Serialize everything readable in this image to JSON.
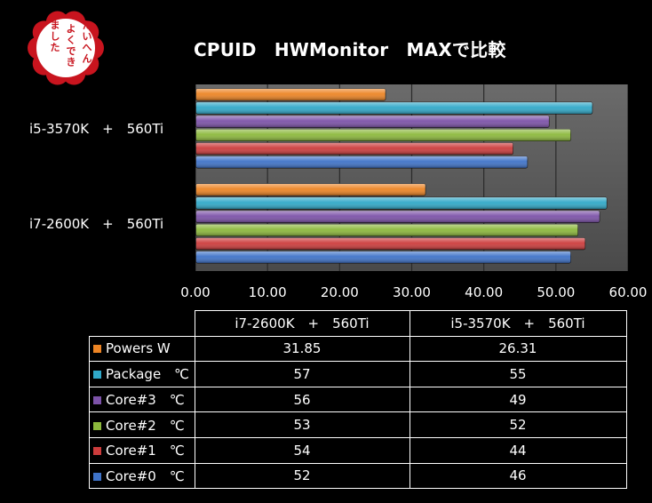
{
  "title": "CPUID　HWMonitor　MAXで比較",
  "stamp": {
    "text": "たいへんよくできました",
    "color": "#c8141e"
  },
  "chart_data": {
    "type": "bar",
    "orientation": "horizontal",
    "title": "CPUID　HWMonitor　MAXで比較",
    "categories": [
      "i7-2600K　+　560Ti",
      "i5-3570K　+　560Ti"
    ],
    "series": [
      {
        "name": "Core#0　℃",
        "color": "#3f73c8",
        "values": [
          52,
          46
        ]
      },
      {
        "name": "Core#1　℃",
        "color": "#cc3c3c",
        "values": [
          54,
          44
        ]
      },
      {
        "name": "Core#2　℃",
        "color": "#8cb83c",
        "values": [
          53,
          52
        ]
      },
      {
        "name": "Core#3　℃",
        "color": "#7c52a8",
        "values": [
          56,
          49
        ]
      },
      {
        "name": "Package　℃",
        "color": "#30a8c8",
        "values": [
          57,
          55
        ]
      },
      {
        "name": "Powers W",
        "color": "#ec8424",
        "values": [
          31.85,
          26.31
        ]
      }
    ],
    "xlim": [
      0,
      60
    ],
    "ticks": [
      "0.00",
      "10.00",
      "20.00",
      "30.00",
      "40.00",
      "50.00",
      "60.00"
    ],
    "grid": true,
    "legend": "data table below chart",
    "table": {
      "rows": [
        {
          "label": "Powers W",
          "values": [
            "31.85",
            "26.31"
          ]
        },
        {
          "label": "Package　℃",
          "values": [
            "57",
            "55"
          ]
        },
        {
          "label": "Core#3　℃",
          "values": [
            "56",
            "49"
          ]
        },
        {
          "label": "Core#2　℃",
          "values": [
            "53",
            "52"
          ]
        },
        {
          "label": "Core#1　℃",
          "values": [
            "54",
            "44"
          ]
        },
        {
          "label": "Core#0　℃",
          "values": [
            "52",
            "46"
          ]
        }
      ]
    }
  }
}
